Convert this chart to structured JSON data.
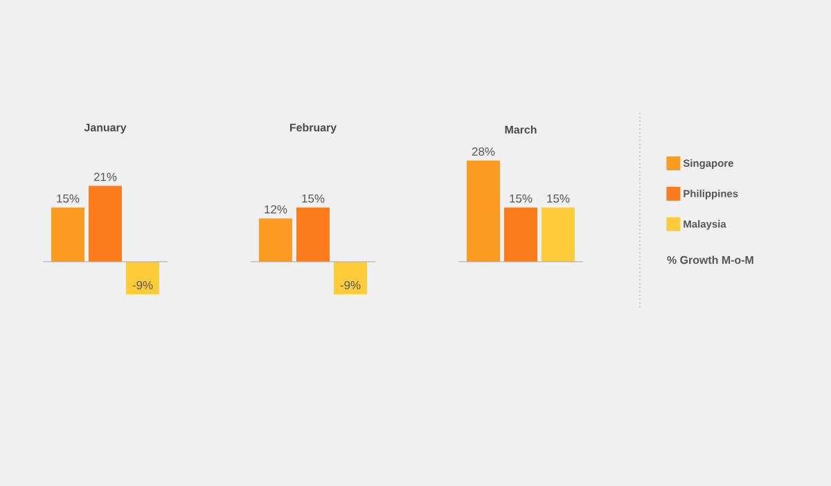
{
  "chart_data": {
    "type": "bar",
    "categories": [
      "January",
      "February",
      "March"
    ],
    "series": [
      {
        "name": "Singapore",
        "color": "#fc9b21",
        "values": [
          15,
          12,
          28
        ],
        "value_labels": [
          "15%",
          "12%",
          "28%"
        ]
      },
      {
        "name": "Philippines",
        "color": "#fc7b1a",
        "values": [
          21,
          15,
          15
        ],
        "value_labels": [
          "21%",
          "15%",
          "15%"
        ]
      },
      {
        "name": "Malaysia",
        "color": "#fecb3a",
        "values": [
          -9,
          -9,
          15
        ],
        "value_labels": [
          "-9%",
          "-9%",
          "15%"
        ]
      }
    ],
    "ref_lines": [
      {
        "axis": "y",
        "value": 0
      }
    ],
    "legend": "right",
    "legend_title": "% Growth M-o-M"
  }
}
